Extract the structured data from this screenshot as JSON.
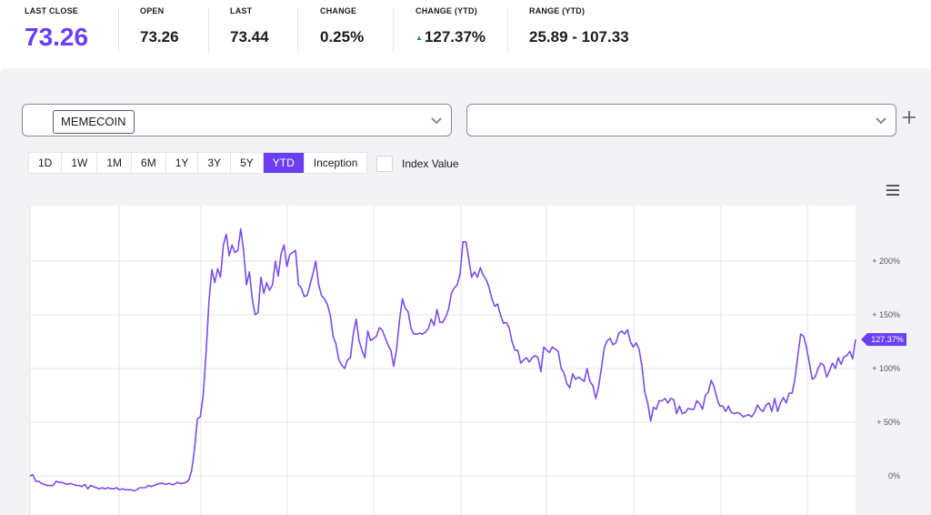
{
  "stats": {
    "last_close": {
      "label": "LAST CLOSE",
      "value": "73.26"
    },
    "open": {
      "label": "OPEN",
      "value": "73.26"
    },
    "last": {
      "label": "LAST",
      "value": "73.44"
    },
    "change": {
      "label": "CHANGE",
      "value": "0.25%"
    },
    "change_ytd": {
      "label": "CHANGE (YTD)",
      "value": "127.37%",
      "direction_icon": "triangle-up-icon"
    },
    "range_ytd": {
      "label": "RANGE (YTD)",
      "value": "25.89 - 107.33"
    }
  },
  "selectors": {
    "primary_value": "MEMECOIN",
    "secondary_value": "",
    "add_icon": "plus-icon",
    "dropdown_icon": "chevron-down-icon"
  },
  "ranges": {
    "items": [
      "1D",
      "1W",
      "1M",
      "6M",
      "1Y",
      "3Y",
      "5Y",
      "YTD",
      "Inception"
    ],
    "active": "YTD"
  },
  "index_value": {
    "label": "Index Value",
    "checked": false
  },
  "menu_icon": "hamburger-menu-icon",
  "colors": {
    "accent": "#6b3ff0",
    "line": "#7a4de8",
    "up": "#2e8b57"
  },
  "chart_data": {
    "type": "line",
    "series": [
      {
        "values": [
          0,
          1,
          -5,
          -5,
          -7,
          -8,
          -9,
          -9,
          -9,
          -5,
          -6,
          -6,
          -7,
          -8,
          -7,
          -8,
          -9,
          -9,
          -10,
          -8,
          -12,
          -9,
          -10,
          -11,
          -12,
          -11,
          -12,
          -11,
          -12,
          -12,
          -11,
          -13,
          -12,
          -13,
          -13,
          -13,
          -14,
          -13,
          -11,
          -11,
          -11,
          -9,
          -10,
          -9,
          -8,
          -7,
          -7,
          -8,
          -7,
          -8,
          -8,
          -6,
          -7,
          -7,
          -6,
          -4,
          5,
          25,
          53,
          55,
          75,
          115,
          162,
          192,
          180,
          193,
          185,
          215,
          225,
          205,
          215,
          208,
          210,
          230,
          210,
          178,
          190,
          165,
          150,
          152,
          185,
          170,
          180,
          173,
          178,
          200,
          186,
          207,
          215,
          195,
          206,
          208,
          210,
          178,
          175,
          167,
          168,
          178,
          188,
          200,
          178,
          168,
          165,
          160,
          150,
          130,
          123,
          108,
          103,
          100,
          108,
          110,
          132,
          146,
          126,
          117,
          110,
          135,
          126,
          128,
          130,
          138,
          136,
          129,
          122,
          117,
          102,
          118,
          145,
          165,
          156,
          153,
          137,
          132,
          132,
          133,
          132,
          134,
          137,
          146,
          140,
          155,
          143,
          143,
          148,
          155,
          170,
          175,
          178,
          188,
          218,
          218,
          202,
          185,
          190,
          185,
          194,
          187,
          183,
          176,
          165,
          158,
          160,
          150,
          142,
          143,
          138,
          125,
          117,
          117,
          105,
          108,
          110,
          106,
          110,
          112,
          110,
          97,
          120,
          117,
          115,
          120,
          118,
          116,
          100,
          96,
          86,
          82,
          95,
          90,
          92,
          90,
          88,
          100,
          88,
          84,
          72,
          83,
          101,
          120,
          126,
          128,
          122,
          124,
          133,
          135,
          132,
          136,
          125,
          120,
          124,
          118,
          102,
          78,
          68,
          51,
          64,
          62,
          70,
          70,
          72,
          68,
          72,
          71,
          58,
          65,
          58,
          59,
          63,
          62,
          62,
          70,
          67,
          62,
          75,
          78,
          89,
          83,
          72,
          65,
          65,
          60,
          65,
          59,
          58,
          59,
          58,
          55,
          56,
          57,
          55,
          59,
          66,
          62,
          60,
          66,
          68,
          60,
          72,
          60,
          68,
          73,
          68,
          77,
          77,
          90,
          112,
          132,
          130,
          120,
          105,
          90,
          92,
          100,
          105,
          103,
          92,
          98,
          105,
          100,
          110,
          104,
          111,
          112,
          116,
          109,
          127
        ]
      }
    ],
    "ylim": [
      -35,
      250
    ],
    "y_ticks": [
      0,
      50,
      100,
      150,
      200
    ],
    "y_tick_labels": [
      "0%",
      "+ 50%",
      "+ 100%",
      "+ 150%",
      "+ 200%"
    ],
    "current_label": "127.37%",
    "grid": true
  }
}
